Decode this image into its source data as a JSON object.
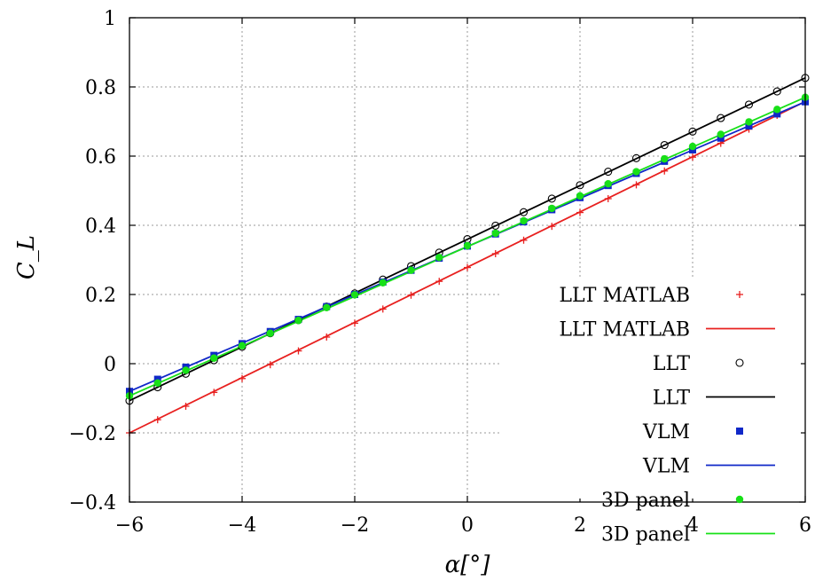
{
  "chart_data": {
    "type": "line",
    "title": "",
    "xlabel": "α[°]",
    "ylabel": "C_L",
    "xlim": [
      -6,
      6
    ],
    "ylim": [
      -0.4,
      1
    ],
    "xticks": [
      "−6",
      "−4",
      "−2",
      "0",
      "2",
      "4",
      "6"
    ],
    "yticks": [
      "−0.4",
      "−0.2",
      "0",
      "0.2",
      "0.4",
      "0.6",
      "0.8",
      "1"
    ],
    "grid": true,
    "legend_position": "bottom-right",
    "series": [
      {
        "name": "LLT MATLAB",
        "style": "markers",
        "marker": "plus",
        "color": "#e8201f",
        "x": [
          -6,
          -5.5,
          -5,
          -4.5,
          -4,
          -3.5,
          -3,
          -2.5,
          -2,
          -1.5,
          -1,
          -0.5,
          0,
          0.5,
          1,
          1.5,
          2,
          2.5,
          3,
          3.5,
          4,
          4.5,
          5,
          5.5,
          6
        ],
        "y": [
          -0.2,
          -0.162,
          -0.123,
          -0.083,
          -0.043,
          -0.003,
          0.037,
          0.077,
          0.117,
          0.158,
          0.198,
          0.238,
          0.278,
          0.318,
          0.357,
          0.397,
          0.437,
          0.477,
          0.517,
          0.557,
          0.597,
          0.637,
          0.678,
          0.718,
          0.758
        ]
      },
      {
        "name": "LLT MATLAB",
        "style": "line",
        "color": "#e8201f",
        "x": [
          -6,
          6
        ],
        "y": [
          -0.2,
          0.758
        ]
      },
      {
        "name": "LLT",
        "style": "markers",
        "marker": "circle",
        "color": "#000000",
        "x": [
          -6,
          -5.5,
          -5,
          -4.5,
          -4,
          -3.5,
          -3,
          -2.5,
          -2,
          -1.5,
          -1,
          -0.5,
          0,
          0.5,
          1,
          1.5,
          2,
          2.5,
          3,
          3.5,
          4,
          4.5,
          5,
          5.5,
          6
        ],
        "y": [
          -0.107,
          -0.068,
          -0.029,
          0.01,
          0.049,
          0.088,
          0.126,
          0.165,
          0.203,
          0.243,
          0.282,
          0.321,
          0.36,
          0.399,
          0.438,
          0.477,
          0.516,
          0.555,
          0.594,
          0.632,
          0.671,
          0.71,
          0.749,
          0.787,
          0.826
        ]
      },
      {
        "name": "LLT",
        "style": "line",
        "color": "#000000",
        "x": [
          -6,
          6
        ],
        "y": [
          -0.107,
          0.826
        ]
      },
      {
        "name": "VLM",
        "style": "markers",
        "marker": "square",
        "color": "#1028c8",
        "x": [
          -6,
          -5.5,
          -5,
          -4.5,
          -4,
          -3.5,
          -3,
          -2.5,
          -2,
          -1.5,
          -1,
          -0.5,
          0,
          0.5,
          1,
          1.5,
          2,
          2.5,
          3,
          3.5,
          4,
          4.5,
          5,
          5.5,
          6
        ],
        "y": [
          -0.08,
          -0.045,
          -0.01,
          0.024,
          0.058,
          0.093,
          0.128,
          0.165,
          0.2,
          0.236,
          0.27,
          0.305,
          0.34,
          0.375,
          0.41,
          0.445,
          0.48,
          0.515,
          0.55,
          0.585,
          0.618,
          0.652,
          0.687,
          0.722,
          0.757
        ]
      },
      {
        "name": "VLM",
        "style": "line",
        "color": "#1028c8",
        "x": [
          -6,
          6
        ],
        "y": [
          -0.08,
          0.757
        ]
      },
      {
        "name": "3D panel",
        "style": "markers",
        "marker": "dot",
        "color": "#18e018",
        "x": [
          -6,
          -5.5,
          -5,
          -4.5,
          -4,
          -3.5,
          -3,
          -2.5,
          -2,
          -1.5,
          -1,
          -0.5,
          0,
          0.5,
          1,
          1.5,
          2,
          2.5,
          3,
          3.5,
          4,
          4.5,
          5,
          5.5,
          6
        ],
        "y": [
          -0.093,
          -0.056,
          -0.019,
          0.016,
          0.052,
          0.088,
          0.125,
          0.162,
          0.199,
          0.234,
          0.27,
          0.307,
          0.341,
          0.377,
          0.413,
          0.449,
          0.485,
          0.52,
          0.555,
          0.592,
          0.628,
          0.663,
          0.699,
          0.735,
          0.77
        ]
      },
      {
        "name": "3D panel",
        "style": "line",
        "color": "#18e018",
        "x": [
          -6,
          6
        ],
        "y": [
          -0.093,
          0.77
        ]
      }
    ]
  }
}
